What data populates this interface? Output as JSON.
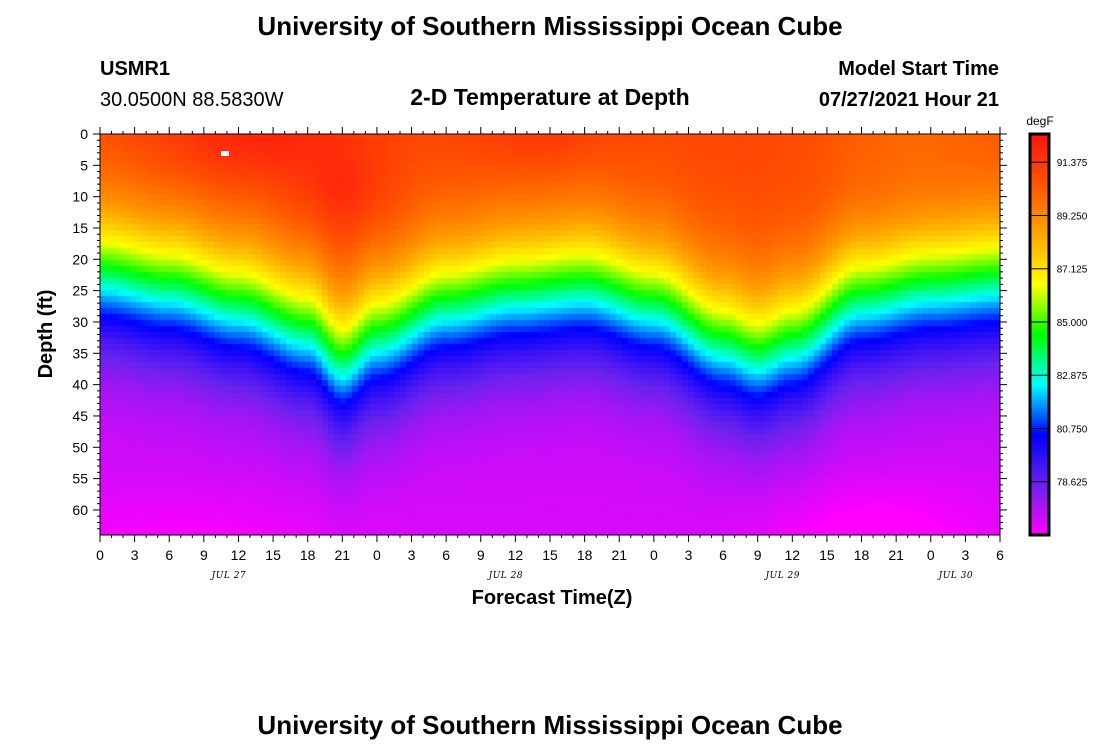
{
  "page": {
    "title_top": "University of Southern Mississippi Ocean Cube",
    "title_bottom": "University of Southern Mississippi Ocean Cube",
    "station_id": "USMR1",
    "station_coords": "30.0500N  88.5830W",
    "plot_title": "2-D Temperature at Depth",
    "model_start_label": "Model Start Time",
    "model_start_value": "07/27/2021 Hour 21"
  },
  "chart_data": {
    "type": "heatmap",
    "xlabel": "Forecast Time(Z)",
    "ylabel": "Depth (ft)",
    "x_ticks": [
      "0",
      "3",
      "6",
      "9",
      "12",
      "15",
      "18",
      "21",
      "0",
      "3",
      "6",
      "9",
      "12",
      "15",
      "18",
      "21",
      "0",
      "3",
      "6",
      "9",
      "12",
      "15",
      "18",
      "21",
      "0",
      "3",
      "6"
    ],
    "x_range_hours": [
      0,
      78
    ],
    "date_labels": [
      {
        "text": "JUL 27",
        "hour": 11
      },
      {
        "text": "JUL 28",
        "hour": 35
      },
      {
        "text": "JUL 29",
        "hour": 59
      },
      {
        "text": "JUL 30",
        "hour": 74
      }
    ],
    "y_ticks": [
      "0",
      "5",
      "10",
      "15",
      "20",
      "25",
      "30",
      "35",
      "40",
      "45",
      "50",
      "55",
      "60"
    ],
    "y_range_ft": [
      0,
      64
    ],
    "colorbar": {
      "unit": "degF",
      "labels": [
        "91.375",
        "89.250",
        "87.125",
        "85.000",
        "82.875",
        "80.750",
        "78.625"
      ],
      "range": [
        76.5,
        92.5
      ],
      "colors": [
        "#ff00ff",
        "#6a22ee",
        "#0000ff",
        "#00ffff",
        "#00ff00",
        "#ffff00",
        "#ffa500",
        "#ff5500",
        "#ff1111"
      ]
    },
    "thermocline_depth_ft": [
      {
        "hour": 0,
        "depth": 22
      },
      {
        "hour": 6,
        "depth": 24
      },
      {
        "hour": 12,
        "depth": 27
      },
      {
        "hour": 18,
        "depth": 31
      },
      {
        "hour": 21,
        "depth": 36
      },
      {
        "hour": 24,
        "depth": 32
      },
      {
        "hour": 30,
        "depth": 27
      },
      {
        "hour": 36,
        "depth": 25
      },
      {
        "hour": 42,
        "depth": 24
      },
      {
        "hour": 48,
        "depth": 27
      },
      {
        "hour": 54,
        "depth": 33
      },
      {
        "hour": 57,
        "depth": 35
      },
      {
        "hour": 60,
        "depth": 33
      },
      {
        "hour": 66,
        "depth": 26
      },
      {
        "hour": 72,
        "depth": 24
      },
      {
        "hour": 78,
        "depth": 23
      }
    ],
    "marker": {
      "hour": 11,
      "depth_ft": 3
    },
    "surface_temp_degF": 91.0,
    "bottom_temp_degF": 77.0
  }
}
